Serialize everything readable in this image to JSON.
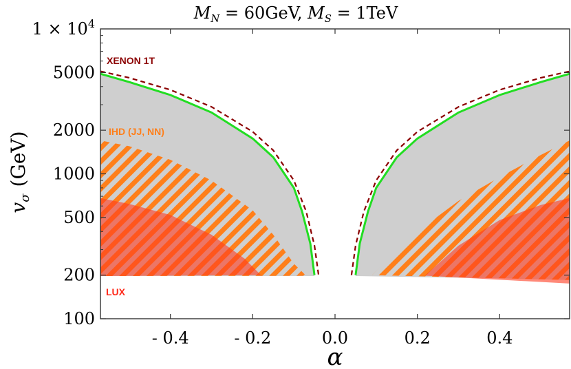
{
  "chart_data": {
    "type": "area",
    "title": "M_N = 60GeV, M_S = 1TeV",
    "title_parts": {
      "mn_sym": "M",
      "mn_sub": "N",
      "mn_val": " = 60GeV, ",
      "ms_sym": "M",
      "ms_sub": "S",
      "ms_val": " = 1TeV"
    },
    "xlabel": "α",
    "ylabel": "v_σ (GeV)",
    "ylabel_parts": {
      "sym": "v",
      "sub": "σ",
      "unit": "(GeV)"
    },
    "x_range": [
      -0.57,
      0.57
    ],
    "y_range": [
      100,
      10000
    ],
    "y_scale": "log",
    "x_ticks": [
      {
        "value": -0.4,
        "label": "- 0.4"
      },
      {
        "value": -0.2,
        "label": "- 0.2"
      },
      {
        "value": 0.0,
        "label": "0.0"
      },
      {
        "value": 0.2,
        "label": "0.2"
      },
      {
        "value": 0.4,
        "label": "0.4"
      }
    ],
    "y_ticks": [
      {
        "value": 100,
        "label": "100"
      },
      {
        "value": 200,
        "label": "200"
      },
      {
        "value": 500,
        "label": "500"
      },
      {
        "value": 1000,
        "label": "1000"
      },
      {
        "value": 2000,
        "label": "2000"
      },
      {
        "value": 5000,
        "label": "5000"
      },
      {
        "value": 10000,
        "label": "1 × 10⁴"
      }
    ],
    "y_top_label_parts": {
      "mantissa": "1 × 10",
      "exp": "4"
    },
    "series": [
      {
        "name": "XENON 1T",
        "style": "dashed",
        "color": "#8b0000",
        "left": {
          "x": [
            -0.57,
            -0.5,
            -0.4,
            -0.3,
            -0.2,
            -0.15,
            -0.1,
            -0.07,
            -0.05,
            -0.04
          ],
          "y": [
            5100,
            4600,
            3800,
            2900,
            1950,
            1450,
            900,
            550,
            320,
            200
          ]
        },
        "right": {
          "x": [
            0.04,
            0.05,
            0.07,
            0.1,
            0.15,
            0.2,
            0.3,
            0.4,
            0.5,
            0.57
          ],
          "y": [
            200,
            320,
            550,
            900,
            1450,
            1950,
            2900,
            3800,
            4600,
            5100
          ]
        }
      },
      {
        "name": "",
        "style": "solid",
        "color": "#22dd22",
        "left": {
          "x": [
            -0.57,
            -0.5,
            -0.4,
            -0.3,
            -0.2,
            -0.15,
            -0.1,
            -0.08,
            -0.06,
            -0.05
          ],
          "y": [
            4900,
            4300,
            3500,
            2650,
            1750,
            1300,
            800,
            550,
            330,
            200
          ]
        },
        "right": {
          "x": [
            0.05,
            0.06,
            0.08,
            0.1,
            0.15,
            0.2,
            0.3,
            0.4,
            0.5,
            0.57
          ],
          "y": [
            200,
            330,
            550,
            800,
            1300,
            1750,
            2650,
            3500,
            4300,
            4900
          ]
        }
      }
    ],
    "regions": [
      {
        "name": "IHD (JJ, NN)",
        "color": "#ff7f1a",
        "fill": "hatched",
        "left": {
          "x": [
            -0.57,
            -0.5,
            -0.4,
            -0.3,
            -0.2,
            -0.15,
            -0.1,
            -0.07
          ],
          "y": [
            1700,
            1550,
            1250,
            900,
            560,
            380,
            240,
            198
          ]
        },
        "right": {
          "x": [
            0.09,
            0.2,
            0.3,
            0.4,
            0.5,
            0.57
          ],
          "y": [
            200,
            400,
            650,
            950,
            1350,
            1700
          ]
        }
      },
      {
        "name": "LUX",
        "color": "#ff3b1f",
        "fill": "solid-translucent",
        "left": {
          "x": [
            -0.57,
            -0.5,
            -0.4,
            -0.3,
            -0.22,
            -0.18
          ],
          "y": [
            680,
            620,
            520,
            380,
            260,
            200
          ]
        },
        "right": {
          "x": [
            0.22,
            0.3,
            0.4,
            0.5,
            0.57
          ],
          "y": [
            200,
            320,
            480,
            610,
            680
          ]
        }
      }
    ],
    "excluded_region": {
      "name": "",
      "color": "#cfcfcf"
    },
    "grid": false
  }
}
